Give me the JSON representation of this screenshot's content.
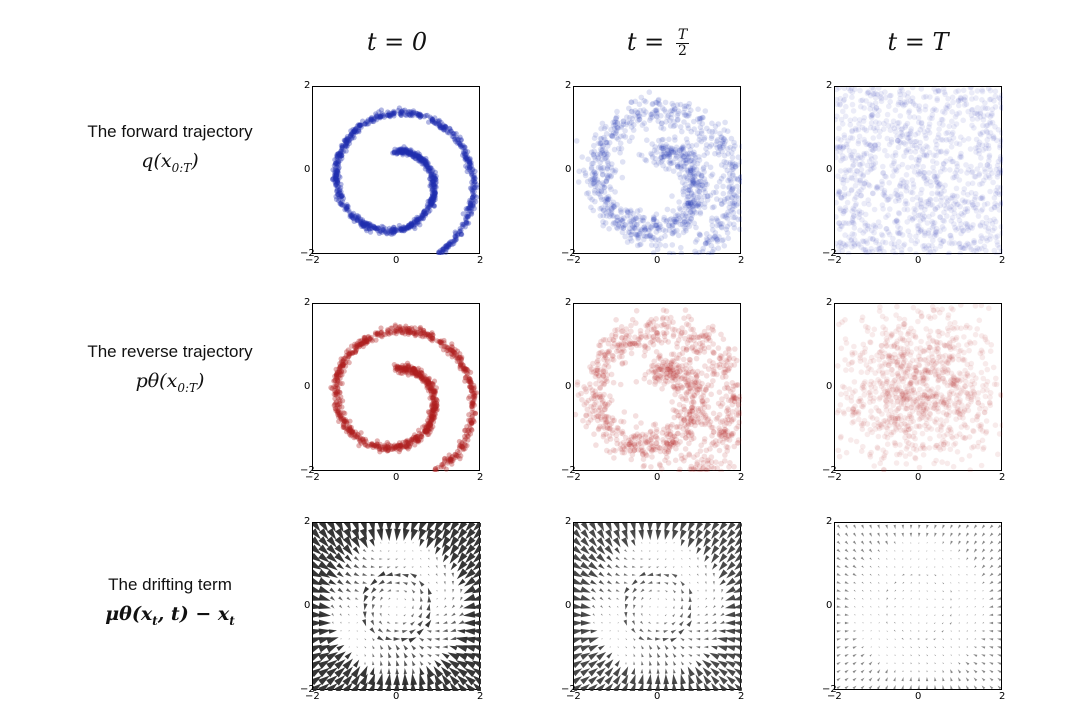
{
  "columns": {
    "t0": "t = 0",
    "thalf_prefix": "t =",
    "thalf_num": "T",
    "thalf_den": "2",
    "tT": "t = T"
  },
  "rows": [
    {
      "label": "The forward trajectory",
      "math": "q(x",
      "math_sub": "0:T",
      "math_tail": ")",
      "color": "#1f2fb0"
    },
    {
      "label": "The reverse trajectory",
      "math": "pθ(x",
      "math_sub": "0:T",
      "math_tail": ")",
      "color": "#b01f1f"
    },
    {
      "label": "The drifting term",
      "math": "μθ(x",
      "math_sub": "t",
      "math_tail": ", t) − x",
      "math_tail_sub": "t",
      "color": "#333333"
    }
  ],
  "axes": {
    "x_ticks": [
      "−2",
      "0",
      "2"
    ],
    "y_ticks": [
      "2",
      "0",
      "−2"
    ]
  },
  "chart_data": [
    {
      "type": "scatter",
      "row": "forward",
      "column": "t = 0",
      "shape": "swiss-roll spiral",
      "xlim": [
        -2,
        2
      ],
      "ylim": [
        -2,
        2
      ],
      "color": "#1f2fb0",
      "noise": 0.0
    },
    {
      "type": "scatter",
      "row": "forward",
      "column": "t = T/2",
      "shape": "noisy spiral",
      "xlim": [
        -2,
        2
      ],
      "ylim": [
        -2,
        2
      ],
      "color": "#1f2fb0",
      "noise": 0.35
    },
    {
      "type": "scatter",
      "row": "forward",
      "column": "t = T",
      "shape": "uniform noise",
      "xlim": [
        -2,
        2
      ],
      "ylim": [
        -2,
        2
      ],
      "color": "#1f2fb0",
      "noise": 1.0
    },
    {
      "type": "scatter",
      "row": "reverse",
      "column": "t = 0",
      "shape": "swiss-roll spiral",
      "xlim": [
        -2,
        2
      ],
      "ylim": [
        -2,
        2
      ],
      "color": "#b01f1f",
      "noise": 0.05
    },
    {
      "type": "scatter",
      "row": "reverse",
      "column": "t = T/2",
      "shape": "noisy spiral",
      "xlim": [
        -2,
        2
      ],
      "ylim": [
        -2,
        2
      ],
      "color": "#b01f1f",
      "noise": 0.4
    },
    {
      "type": "scatter",
      "row": "reverse",
      "column": "t = T",
      "shape": "gaussian noise",
      "xlim": [
        -2,
        2
      ],
      "ylim": [
        -2,
        2
      ],
      "color": "#b01f1f",
      "noise": 1.0
    },
    {
      "type": "quiver",
      "row": "drift",
      "column": "t = 0",
      "xlim": [
        -2,
        2
      ],
      "ylim": [
        -2,
        2
      ],
      "strength": 1.0
    },
    {
      "type": "quiver",
      "row": "drift",
      "column": "t = T/2",
      "xlim": [
        -2,
        2
      ],
      "ylim": [
        -2,
        2
      ],
      "strength": 0.85
    },
    {
      "type": "quiver",
      "row": "drift",
      "column": "t = T",
      "xlim": [
        -2,
        2
      ],
      "ylim": [
        -2,
        2
      ],
      "strength": 0.35
    }
  ]
}
